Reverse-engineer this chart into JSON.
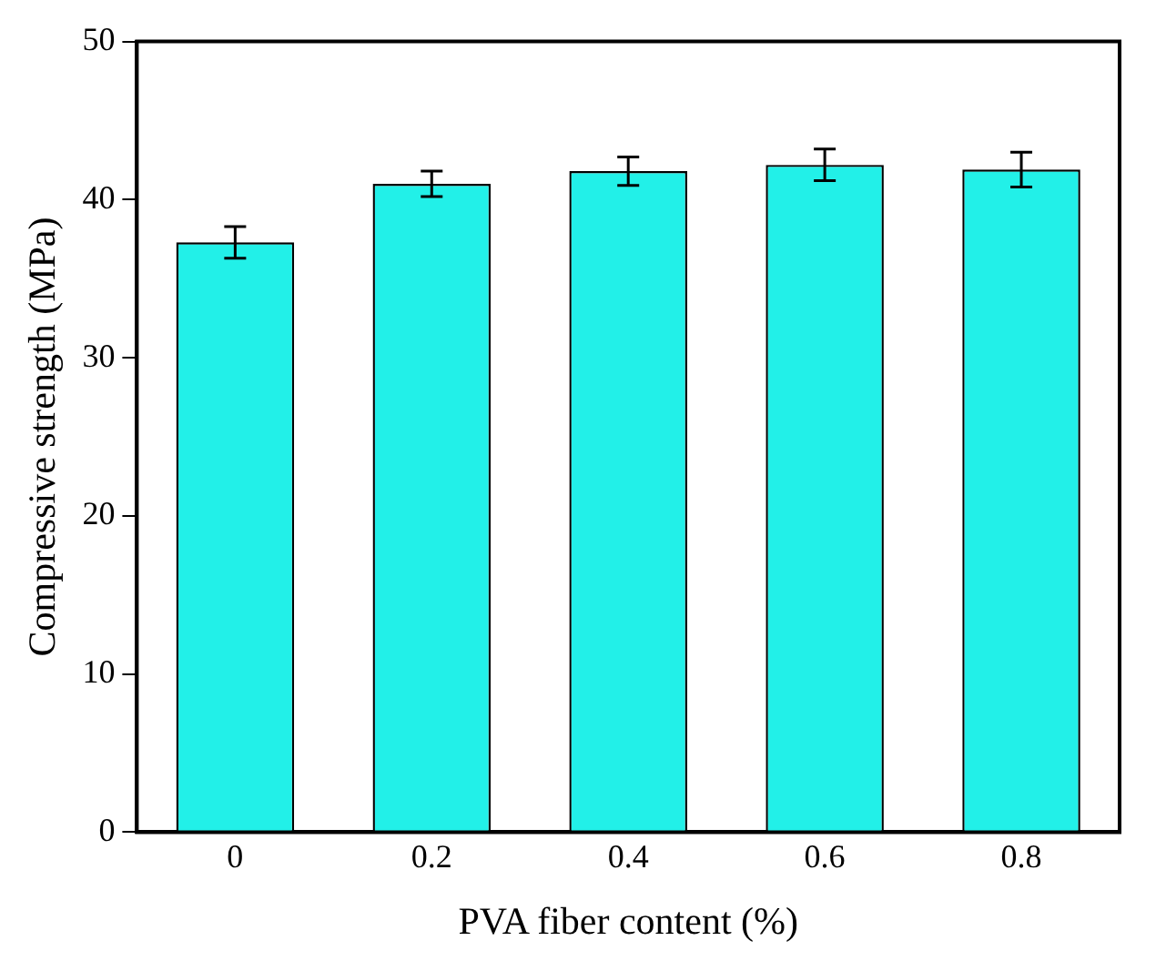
{
  "chart_data": {
    "type": "bar",
    "xlabel": "PVA fiber content (%)",
    "ylabel": "Compressive strength (MPa)",
    "categories": [
      "0",
      "0.2",
      "0.4",
      "0.6",
      "0.8"
    ],
    "values": [
      37.3,
      41.0,
      41.8,
      42.2,
      41.9
    ],
    "errors": [
      1.0,
      0.8,
      0.9,
      1.0,
      1.1
    ],
    "color": "#22f0e8",
    "ylim": [
      0,
      50
    ],
    "yticks": [
      0,
      10,
      20,
      30,
      40,
      50
    ],
    "grid": false,
    "legend": false
  }
}
